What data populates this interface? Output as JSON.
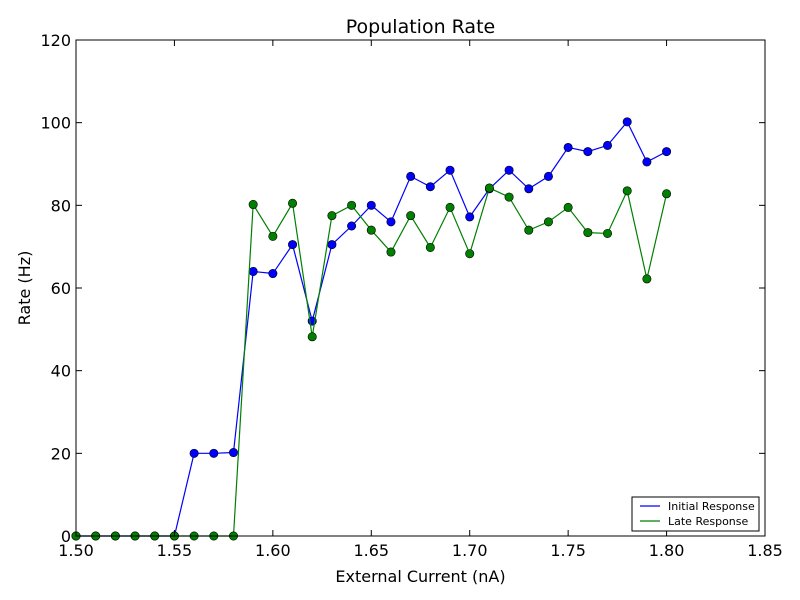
{
  "chart_data": {
    "type": "line",
    "title": "Population Rate",
    "xlabel": "External Current (nA)",
    "ylabel": "Rate (Hz)",
    "xlim": [
      1.5,
      1.85
    ],
    "ylim": [
      0,
      120
    ],
    "xticks": [
      "1.50",
      "1.55",
      "1.60",
      "1.65",
      "1.70",
      "1.75",
      "1.80",
      "1.85"
    ],
    "yticks": [
      "0",
      "20",
      "40",
      "60",
      "80",
      "100",
      "120"
    ],
    "grid": false,
    "legend_position": "lower-right",
    "x": [
      1.5,
      1.51,
      1.52,
      1.53,
      1.54,
      1.55,
      1.56,
      1.57,
      1.58,
      1.59,
      1.6,
      1.61,
      1.62,
      1.63,
      1.64,
      1.65,
      1.66,
      1.67,
      1.68,
      1.69,
      1.7,
      1.71,
      1.72,
      1.73,
      1.74,
      1.75,
      1.76,
      1.77,
      1.78,
      1.79,
      1.8
    ],
    "series": [
      {
        "name": "Initial Response",
        "color": "#0000ff",
        "values": [
          0,
          0,
          0,
          0,
          0,
          0,
          20,
          20,
          20.2,
          64,
          63.5,
          70.5,
          52,
          70.5,
          75,
          80,
          76,
          87,
          84.5,
          88.5,
          77.2,
          84,
          88.5,
          84,
          87,
          94,
          93,
          94.5,
          100.2,
          90.5,
          93
        ]
      },
      {
        "name": "Late Response",
        "color": "#008000",
        "values": [
          0,
          0,
          0,
          0,
          0,
          0,
          0,
          0,
          0,
          80.2,
          72.5,
          80.5,
          48.2,
          77.5,
          80,
          74,
          68.7,
          77.5,
          69.8,
          79.5,
          68.3,
          84.2,
          82,
          74,
          76,
          79.5,
          73.4,
          73.2,
          83.5,
          62.2,
          82.8
        ]
      }
    ]
  }
}
